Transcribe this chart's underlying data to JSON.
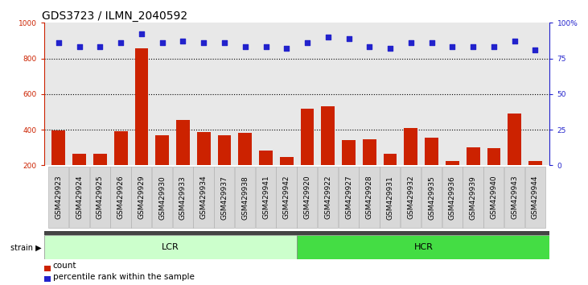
{
  "title": "GDS3723 / ILMN_2040592",
  "categories": [
    "GSM429923",
    "GSM429924",
    "GSM429925",
    "GSM429926",
    "GSM429929",
    "GSM429930",
    "GSM429933",
    "GSM429934",
    "GSM429937",
    "GSM429938",
    "GSM429941",
    "GSM429942",
    "GSM429920",
    "GSM429922",
    "GSM429927",
    "GSM429928",
    "GSM429931",
    "GSM429932",
    "GSM429935",
    "GSM429936",
    "GSM429939",
    "GSM429940",
    "GSM429943",
    "GSM429944"
  ],
  "bar_values": [
    395,
    265,
    263,
    390,
    855,
    370,
    455,
    385,
    370,
    380,
    285,
    248,
    520,
    530,
    340,
    348,
    263,
    408,
    355,
    225,
    300,
    295,
    490,
    225
  ],
  "dot_values": [
    86,
    83,
    83,
    86,
    92,
    86,
    87,
    86,
    86,
    83,
    83,
    82,
    86,
    90,
    89,
    83,
    82,
    86,
    86,
    83,
    83,
    83,
    87,
    81
  ],
  "lcr_count": 12,
  "hcr_count": 12,
  "bar_color": "#cc2200",
  "dot_color": "#2222cc",
  "lcr_color": "#ccffcc",
  "hcr_color": "#44dd44",
  "ylim_left": [
    200,
    1000
  ],
  "ylim_right": [
    0,
    100
  ],
  "yticks_left": [
    200,
    400,
    600,
    800,
    1000
  ],
  "yticks_right": [
    0,
    25,
    50,
    75,
    100
  ],
  "grid_values": [
    400,
    600,
    800
  ],
  "background_color": "#e8e8e8",
  "title_fontsize": 10,
  "tick_fontsize": 6.5,
  "legend_items": [
    "count",
    "percentile rank within the sample"
  ]
}
